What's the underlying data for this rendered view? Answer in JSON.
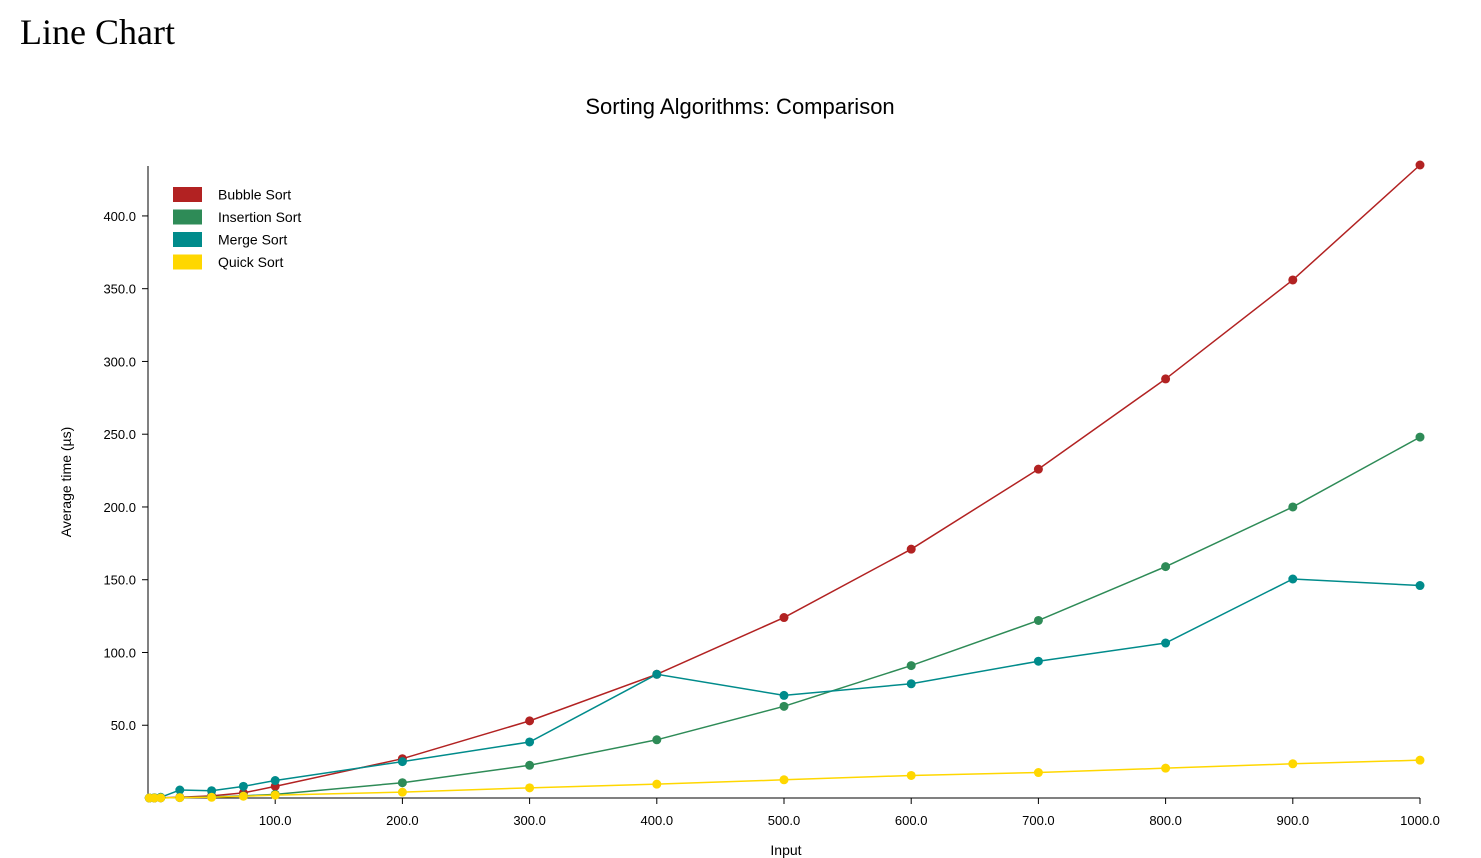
{
  "page": {
    "heading": "Line Chart"
  },
  "chart_data": {
    "type": "line",
    "title": "Sorting Algorithms: Comparison",
    "xlabel": "Input",
    "ylabel": "Average time (µs)",
    "xlim": [
      0,
      1000
    ],
    "ylim": [
      0,
      435
    ],
    "x_ticks": [
      100,
      200,
      300,
      400,
      500,
      600,
      700,
      800,
      900,
      1000
    ],
    "x_tick_labels": [
      "100.0",
      "200.0",
      "300.0",
      "400.0",
      "500.0",
      "600.0",
      "700.0",
      "800.0",
      "900.0",
      "1000.0"
    ],
    "y_ticks": [
      50,
      100,
      150,
      200,
      250,
      300,
      350,
      400
    ],
    "y_tick_labels": [
      "50.0",
      "100.0",
      "150.0",
      "200.0",
      "250.0",
      "300.0",
      "350.0",
      "400.0"
    ],
    "grid": false,
    "legend_position": "top-left",
    "x": [
      1,
      5,
      10,
      25,
      50,
      75,
      100,
      200,
      300,
      400,
      500,
      600,
      700,
      800,
      900,
      1000
    ],
    "series": [
      {
        "name": "Bubble Sort",
        "color": "#b22222",
        "values": [
          0,
          0,
          0.2,
          0.5,
          1.5,
          3.5,
          8,
          27,
          53,
          85,
          124,
          171,
          226,
          288,
          356,
          435
        ]
      },
      {
        "name": "Insertion Sort",
        "color": "#2e8b57",
        "values": [
          0,
          0,
          0.1,
          0.3,
          0.8,
          1.5,
          2.5,
          10.5,
          22.5,
          40,
          63,
          91,
          122,
          159,
          200,
          248
        ]
      },
      {
        "name": "Merge Sort",
        "color": "#008b8b",
        "values": [
          0,
          0.2,
          0.5,
          5.5,
          5,
          8,
          12,
          25,
          38.5,
          85,
          70.5,
          78.5,
          94,
          106.5,
          150.5,
          146
        ]
      },
      {
        "name": "Quick Sort",
        "color": "#ffd700",
        "values": [
          0,
          0,
          0.1,
          0.3,
          0.5,
          1.2,
          2,
          4,
          7,
          9.5,
          12.5,
          15.5,
          17.5,
          20.5,
          23.5,
          26
        ]
      }
    ]
  }
}
